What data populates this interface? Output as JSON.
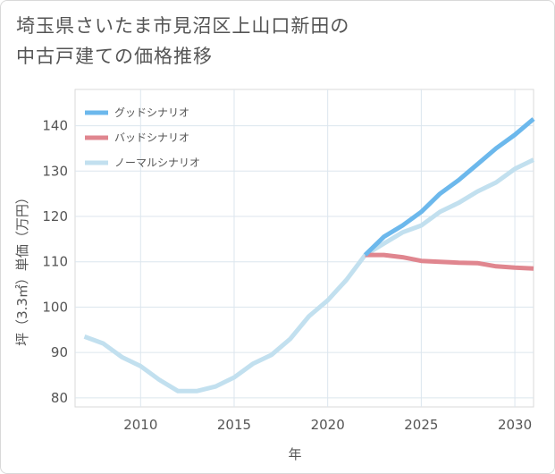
{
  "title_lines": [
    "埼玉県さいたま市見沼区上山口新田の",
    "中古戸建ての価格推移"
  ],
  "chart_data": {
    "type": "line",
    "xlabel": "年",
    "ylabel": "坪（3.3㎡）単価（万円）",
    "xlim": [
      2006.5,
      2031
    ],
    "ylim": [
      78,
      148
    ],
    "xticks": [
      2010,
      2015,
      2020,
      2025,
      2030
    ],
    "yticks": [
      80,
      90,
      100,
      110,
      120,
      130,
      140
    ],
    "grid": true,
    "legend_position": "top-left",
    "series": [
      {
        "name": "グッドシナリオ",
        "color": "#6cb8ec",
        "x": [
          2022,
          2023,
          2024,
          2025,
          2026,
          2027,
          2028,
          2029,
          2030,
          2031
        ],
        "y": [
          111.5,
          115.5,
          118,
          121,
          125,
          128,
          131.5,
          135,
          138,
          141.5
        ]
      },
      {
        "name": "バッドシナリオ",
        "color": "#e0868f",
        "x": [
          2022,
          2023,
          2024,
          2025,
          2026,
          2027,
          2028,
          2029,
          2030,
          2031
        ],
        "y": [
          111.5,
          111.5,
          111,
          110.2,
          110,
          109.8,
          109.7,
          109,
          108.7,
          108.5
        ]
      },
      {
        "name": "ノーマルシナリオ",
        "color": "#c2e0ef",
        "x": [
          2007,
          2008,
          2009,
          2010,
          2011,
          2012,
          2013,
          2014,
          2015,
          2016,
          2017,
          2018,
          2019,
          2020,
          2021,
          2022,
          2023,
          2024,
          2025,
          2026,
          2027,
          2028,
          2029,
          2030,
          2031
        ],
        "y": [
          93.5,
          92,
          89,
          87,
          84,
          81.5,
          81.5,
          82.5,
          84.5,
          87.5,
          89.5,
          93,
          98,
          101.5,
          106,
          111.5,
          114,
          116.5,
          118,
          121,
          123,
          125.5,
          127.5,
          130.5,
          132.5
        ]
      }
    ]
  }
}
